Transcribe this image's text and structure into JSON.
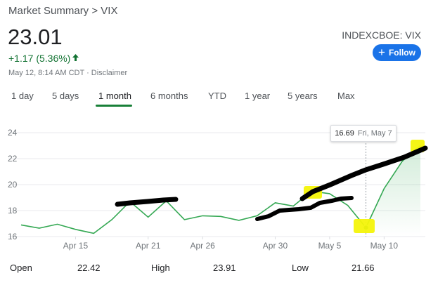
{
  "breadcrumb": "Market Summary > VIX",
  "price": "23.01",
  "change": "+1.17 (5.36%)",
  "change_color": "#137333",
  "timestamp": "May 12, 8:14 AM CDT · Disclaimer",
  "ticker": "INDEXCBOE: VIX",
  "follow_label": "Follow",
  "tabs": [
    "1 day",
    "5 days",
    "1 month",
    "6 months",
    "YTD",
    "1 year",
    "5 years",
    "Max"
  ],
  "active_tab": "1 month",
  "tooltip": {
    "value": "16.69",
    "date": "Fri, May 7"
  },
  "stats": {
    "open_label": "Open",
    "open_value": "22.42",
    "high_label": "High",
    "high_value": "23.91",
    "low_label": "Low",
    "low_value": "21.66"
  },
  "chart_data": {
    "type": "line",
    "x": [
      "Apr 12",
      "Apr 13",
      "Apr 14",
      "Apr 15",
      "Apr 16",
      "Apr 19",
      "Apr 20",
      "Apr 21",
      "Apr 22",
      "Apr 23",
      "Apr 26",
      "Apr 27",
      "Apr 28",
      "Apr 29",
      "Apr 30",
      "May 3",
      "May 4",
      "May 5",
      "May 6",
      "May 7",
      "May 10",
      "May 11",
      "May 12"
    ],
    "values": [
      16.9,
      16.65,
      16.95,
      16.55,
      16.25,
      17.3,
      18.7,
      17.5,
      18.75,
      17.3,
      17.6,
      17.55,
      17.25,
      17.6,
      18.6,
      18.35,
      19.5,
      19.3,
      18.4,
      16.69,
      19.7,
      21.8,
      23.01
    ],
    "x_ticks": [
      "Apr 15",
      "Apr 21",
      "Apr 26",
      "Apr 30",
      "May 5",
      "May 10"
    ],
    "y_ticks": [
      16,
      18,
      20,
      22,
      24
    ],
    "ylim": [
      16,
      24
    ],
    "line_color": "#34a853"
  }
}
